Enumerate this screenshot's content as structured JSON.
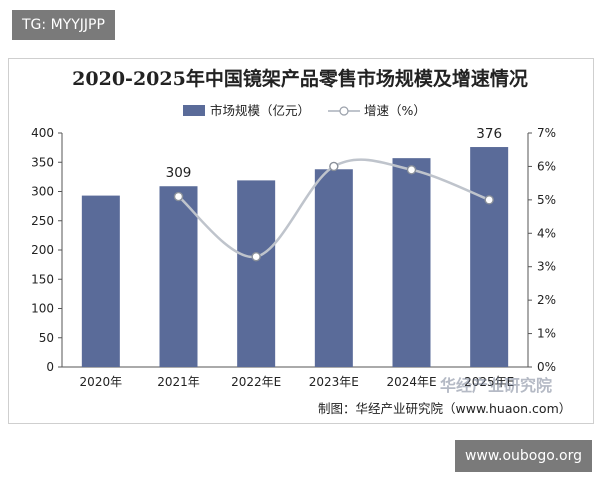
{
  "tag": "TG: MYYJJPP",
  "watermark_center": "华经产业研究院",
  "watermark_bottom": "www.oubogo.org",
  "credit": "制图：华经产业研究院（www.huaon.com）",
  "colors": {
    "bar": "#5a6b99",
    "line": "#bfc4cc",
    "text": "#222222"
  },
  "chart_data": {
    "type": "bar",
    "title": "2020-2025年中国镜架产品零售市场规模及增速情况",
    "categories": [
      "2020年",
      "2021年",
      "2022年E",
      "2023年E",
      "2024年E",
      "2025年E"
    ],
    "series": [
      {
        "name": "市场规模（亿元）",
        "type": "bar",
        "axis": "left",
        "values": [
          293,
          309,
          319,
          338,
          357,
          376
        ]
      },
      {
        "name": "增速（%）",
        "type": "line",
        "axis": "right",
        "smooth": true,
        "values": [
          null,
          5.1,
          3.3,
          6.0,
          5.9,
          5.0
        ]
      }
    ],
    "data_labels": [
      {
        "category_index": 1,
        "text": "309"
      },
      {
        "category_index": 5,
        "text": "376"
      }
    ],
    "y_left": {
      "lim": [
        0,
        400
      ],
      "ticks": [
        "0",
        "50",
        "100",
        "150",
        "200",
        "250",
        "300",
        "350",
        "400"
      ]
    },
    "y_right": {
      "lim": [
        0,
        7
      ],
      "ticks": [
        "0%",
        "1%",
        "2%",
        "3%",
        "4%",
        "5%",
        "6%",
        "7%"
      ]
    },
    "legend_position": "top-center",
    "grid": false
  }
}
